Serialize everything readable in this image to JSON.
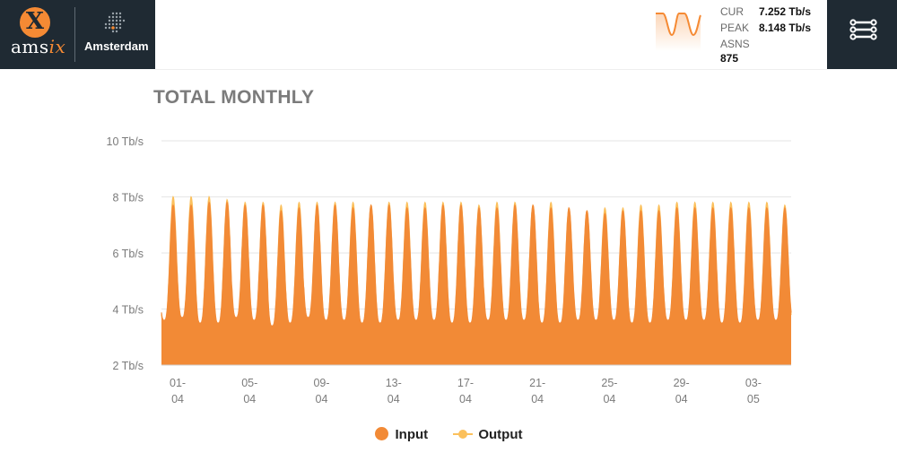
{
  "header": {
    "logo_text_main": "ams",
    "logo_text_accent": "ix",
    "logo_mark": "X",
    "city": "Amsterdam",
    "stats": {
      "cur_label": "CUR",
      "cur_value": "7.252 Tb/s",
      "peak_label": "PEAK",
      "peak_value": "8.148 Tb/s",
      "asns_label": "ASNS",
      "asns_value": "875"
    },
    "menu_icon": "hamburger-menu-icon"
  },
  "colors": {
    "input": "#f28a36",
    "output": "#fbc05c",
    "header_bg": "#1f2a33",
    "grid": "#e6e6e6",
    "axis_text": "#7b7b7b"
  },
  "page": {
    "title": "TOTAL MONTHLY"
  },
  "legend": {
    "input_label": "Input",
    "output_label": "Output"
  },
  "chart_data": {
    "type": "area",
    "title": "TOTAL MONTHLY",
    "ylim": [
      2,
      10
    ],
    "y_unit": "Tb/s",
    "y_ticks": [
      2,
      4,
      6,
      8,
      10
    ],
    "y_tick_labels": [
      "2 Tb/s",
      "4 Tb/s",
      "6 Tb/s",
      "8 Tb/s",
      "10 Tb/s"
    ],
    "x_ticks": [
      {
        "day": 1,
        "top": "01-",
        "bottom": "04"
      },
      {
        "day": 5,
        "top": "05-",
        "bottom": "04"
      },
      {
        "day": 9,
        "top": "09-",
        "bottom": "04"
      },
      {
        "day": 13,
        "top": "13-",
        "bottom": "04"
      },
      {
        "day": 17,
        "top": "17-",
        "bottom": "04"
      },
      {
        "day": 21,
        "top": "21-",
        "bottom": "04"
      },
      {
        "day": 25,
        "top": "25-",
        "bottom": "04"
      },
      {
        "day": 29,
        "top": "29-",
        "bottom": "04"
      },
      {
        "day": 33,
        "top": "03-",
        "bottom": "05"
      }
    ],
    "x_range_days": [
      0.1,
      35.1
    ],
    "grid": true,
    "legend_position": "bottom",
    "series": [
      {
        "name": "Input",
        "daily_peak": [
          7.7,
          7.7,
          7.8,
          7.8,
          7.7,
          7.7,
          7.5,
          7.6,
          7.7,
          7.7,
          7.6,
          7.7,
          7.7,
          7.6,
          7.6,
          7.7,
          7.7,
          7.6,
          7.6,
          7.7,
          7.7,
          7.6,
          7.6,
          7.5,
          7.4,
          7.5,
          7.5,
          7.5,
          7.6,
          7.6,
          7.6,
          7.6,
          7.6,
          7.6,
          7.6
        ],
        "daily_trough": [
          3.6,
          3.7,
          3.5,
          3.5,
          3.7,
          3.6,
          3.4,
          3.5,
          3.7,
          3.6,
          3.6,
          3.5,
          3.5,
          3.6,
          3.6,
          3.6,
          3.5,
          3.5,
          3.6,
          3.6,
          3.6,
          3.5,
          3.5,
          3.6,
          3.6,
          3.6,
          3.5,
          3.5,
          3.6,
          3.6,
          3.6,
          3.5,
          3.5,
          3.6,
          3.6
        ]
      },
      {
        "name": "Output",
        "daily_peak": [
          8.0,
          8.0,
          8.0,
          7.9,
          7.8,
          7.8,
          7.7,
          7.8,
          7.8,
          7.8,
          7.8,
          7.7,
          7.8,
          7.8,
          7.8,
          7.8,
          7.8,
          7.7,
          7.8,
          7.8,
          7.7,
          7.8,
          7.6,
          7.5,
          7.6,
          7.6,
          7.7,
          7.7,
          7.8,
          7.8,
          7.8,
          7.8,
          7.8,
          7.8,
          7.7
        ],
        "daily_trough": [
          3.5,
          3.6,
          3.4,
          3.4,
          3.5,
          3.5,
          3.3,
          3.4,
          3.5,
          3.5,
          3.5,
          3.4,
          3.4,
          3.5,
          3.5,
          3.5,
          3.4,
          3.4,
          3.5,
          3.5,
          3.5,
          3.4,
          3.4,
          3.5,
          3.5,
          3.5,
          3.4,
          3.4,
          3.5,
          3.5,
          3.5,
          3.4,
          3.4,
          3.5,
          3.5
        ]
      }
    ]
  }
}
